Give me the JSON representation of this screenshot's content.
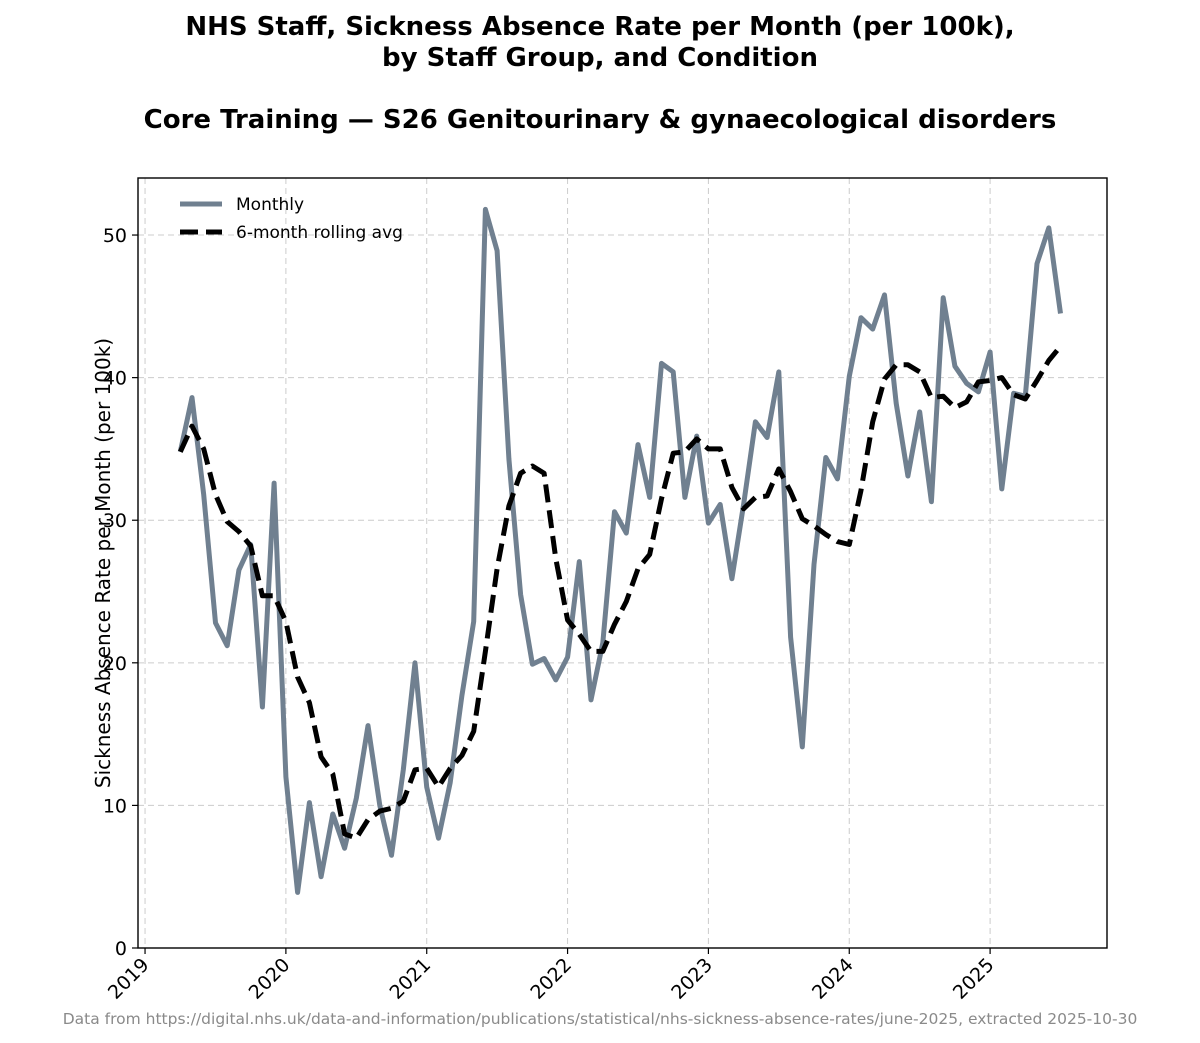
{
  "title_line1": "NHS Staff, Sickness Absence Rate per Month (per 100k),",
  "title_line2": "by Staff Group, and Condition",
  "subtitle": "Core Training — S26 Genitourinary & gynaecological disorders",
  "source_note": "Data from https://digital.nhs.uk/data-and-information/publications/statistical/nhs-sickness-absence-rates/june-2025, extracted 2025-10-30",
  "chart_data": {
    "type": "line",
    "title": "NHS Staff, Sickness Absence Rate per Month (per 100k), by Staff Group, and Condition",
    "subtitle": "Core Training — S26 Genitourinary & gynaecological disorders",
    "xlabel": "",
    "ylabel": "Sickness Absence Rate per Month (per 100k)",
    "xlim": [
      2018.95,
      2025.83
    ],
    "ylim": [
      0,
      54
    ],
    "x_ticks": [
      2019,
      2020,
      2021,
      2022,
      2023,
      2024,
      2025
    ],
    "x_tick_labels": [
      "2019",
      "2020",
      "2021",
      "2022",
      "2023",
      "2024",
      "2025"
    ],
    "y_ticks": [
      0,
      10,
      20,
      30,
      40,
      50
    ],
    "y_tick_labels": [
      "0",
      "10",
      "20",
      "30",
      "40",
      "50"
    ],
    "grid": true,
    "legend_position": "top-left",
    "x_start": "2019-04",
    "x_step": "1 month",
    "colors": {
      "monthly": "#708090",
      "rolling": "#000000"
    },
    "series": [
      {
        "name": "Monthly",
        "style": "solid",
        "values": [
          34.8,
          38.6,
          31.8,
          22.8,
          21.2,
          26.5,
          28.3,
          16.9,
          32.6,
          12.0,
          3.9,
          10.2,
          5.0,
          9.4,
          7.0,
          10.5,
          15.6,
          10.0,
          6.5,
          12.5,
          20.0,
          11.3,
          7.7,
          11.6,
          17.7,
          22.9,
          51.8,
          48.9,
          34.3,
          24.8,
          19.9,
          20.3,
          18.8,
          20.4,
          27.1,
          17.4,
          21.4,
          30.6,
          29.1,
          35.3,
          31.6,
          41.0,
          40.4,
          31.6,
          35.9,
          29.8,
          31.1,
          25.9,
          31.1,
          36.9,
          35.8,
          40.4,
          21.8,
          14.1,
          26.9,
          34.4,
          32.9,
          40.1,
          44.2,
          43.4,
          45.8,
          38.2,
          33.1,
          37.6,
          31.3,
          45.6,
          40.8,
          39.6,
          39.0,
          41.8,
          32.2,
          38.9,
          38.7,
          48.0,
          50.5,
          44.5
        ]
      },
      {
        "name": "6-month rolling avg",
        "style": "dashed",
        "values": [
          34.8,
          36.6,
          35.0,
          31.8,
          29.9,
          29.2,
          28.2,
          24.7,
          24.7,
          22.9,
          19.0,
          17.2,
          13.4,
          12.2,
          8.0,
          7.7,
          9.0,
          9.6,
          9.8,
          10.3,
          12.5,
          12.6,
          11.3,
          12.6,
          13.5,
          15.2,
          20.8,
          26.6,
          31.0,
          33.3,
          33.8,
          33.3,
          27.3,
          23.0,
          22.0,
          20.8,
          20.8,
          22.7,
          24.3,
          26.6,
          27.6,
          31.5,
          34.7,
          34.8,
          35.7,
          35.0,
          35.0,
          32.3,
          30.8,
          31.6,
          31.7,
          33.6,
          32.0,
          30.1,
          29.6,
          29.0,
          28.5,
          28.3,
          32.1,
          36.9,
          39.9,
          40.9,
          40.9,
          40.4,
          38.6,
          38.7,
          37.9,
          38.3,
          39.7,
          39.8,
          40.0,
          38.8,
          38.5,
          39.8,
          41.2,
          42.2
        ]
      }
    ]
  }
}
